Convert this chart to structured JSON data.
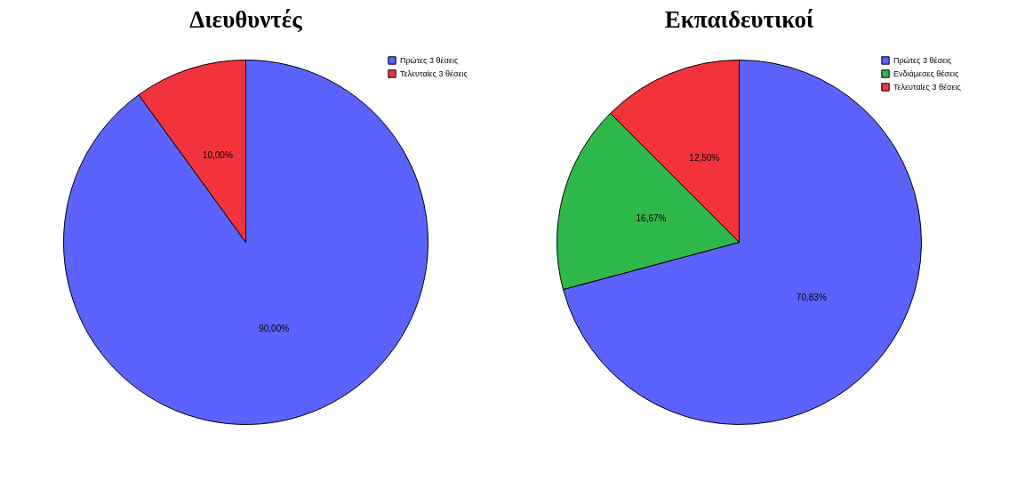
{
  "chart_data": [
    {
      "type": "pie",
      "title": "Διευθυντές",
      "categories": [
        "Πρώτες 3 θέσεις",
        "Τελευταίες 3 θέσεις"
      ],
      "values": [
        90,
        10
      ],
      "colors": [
        "#5b62fd",
        "#f2333c"
      ],
      "value_labels": [
        "90,00%",
        "10,00%"
      ],
      "legend": "top right"
    },
    {
      "type": "pie",
      "title": "Εκπαιδευτικοί",
      "categories": [
        "Πρώτες 3 θέσεις",
        "Ενδιάμεσες θέσεις",
        "Τελευταίες 3 θέσεις"
      ],
      "values": [
        70.83,
        16.67,
        12.5
      ],
      "colors": [
        "#5b62fd",
        "#2fb84a",
        "#f2333c"
      ],
      "value_labels": [
        "70,83%",
        "16,67%",
        "12,50%"
      ],
      "legend": "top right"
    }
  ]
}
